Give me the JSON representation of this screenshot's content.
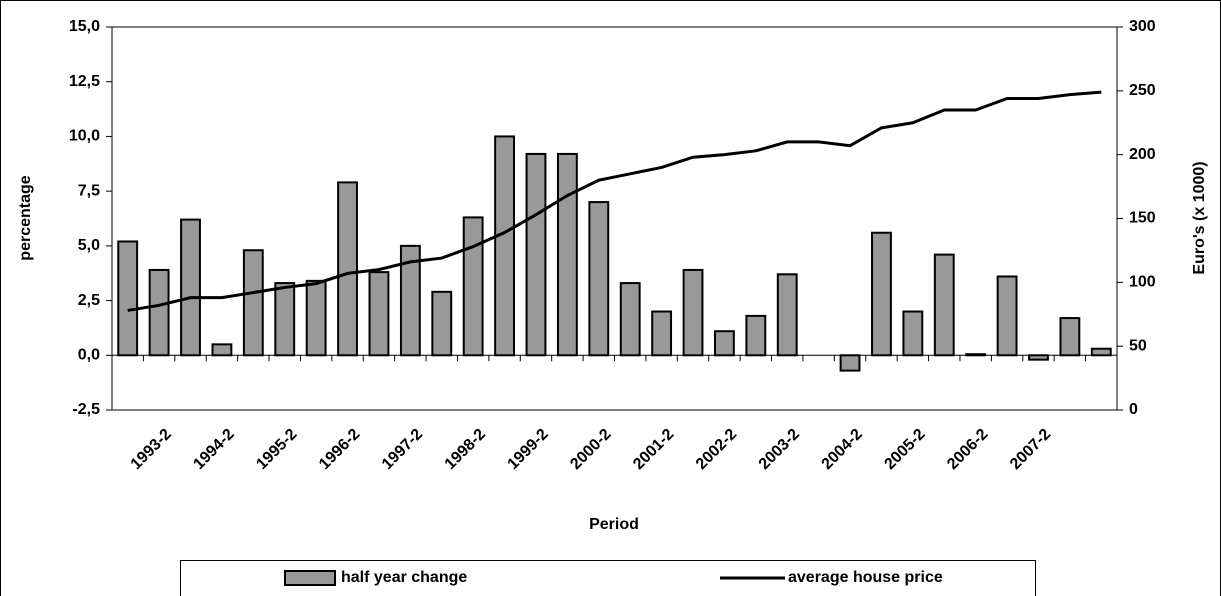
{
  "chart_data": {
    "type": "bar-line",
    "x_label": "Period",
    "y_label": "percentage",
    "y2_label": "Euro's (x 1000)",
    "categories": [
      null,
      "1993-2",
      null,
      "1994-2",
      null,
      "1995-2",
      null,
      "1996-2",
      null,
      "1997-2",
      null,
      "1998-2",
      null,
      "1999-2",
      null,
      "2000-2",
      null,
      "2001-2",
      null,
      "2002-2",
      null,
      "2003-2",
      null,
      "2004-2",
      null,
      "2005-2",
      null,
      "2006-2",
      null,
      "2007-2",
      null,
      null
    ],
    "series": [
      {
        "name": "half year change",
        "color": "#999999",
        "type": "bar",
        "values": [
          5.2,
          3.9,
          6.2,
          0.5,
          4.8,
          3.3,
          3.4,
          7.9,
          3.8,
          5.0,
          2.9,
          6.3,
          10.0,
          9.2,
          9.2,
          7.0,
          3.3,
          2.0,
          3.9,
          1.1,
          1.8,
          3.7,
          0,
          -0.7,
          5.6,
          2.0,
          4.6,
          0.05,
          3.6,
          -0.2,
          1.7,
          0.3
        ]
      },
      {
        "name": "average house price",
        "color": "#000000",
        "type": "line",
        "axis": "y2",
        "values": [
          78,
          82,
          88,
          88,
          92,
          96,
          99,
          107,
          110,
          116,
          119,
          128,
          139,
          153,
          168,
          180,
          185,
          190,
          198,
          200,
          203,
          210,
          210,
          207,
          221,
          225,
          235,
          235,
          244,
          244,
          247,
          249
        ]
      }
    ],
    "ylim": [
      -2.5,
      15
    ],
    "yticks": [
      {
        "value": -2.5,
        "label": "-2,5"
      },
      {
        "value": 0,
        "label": "0,0"
      },
      {
        "value": 2.5,
        "label": "2,5"
      },
      {
        "value": 5,
        "label": "5,0"
      },
      {
        "value": 7.5,
        "label": "7,5"
      },
      {
        "value": 10,
        "label": "10,0"
      },
      {
        "value": 12.5,
        "label": "12,5"
      },
      {
        "value": 15,
        "label": "15,0"
      }
    ],
    "y2lim": [
      0,
      300
    ],
    "y2ticks": [
      0,
      50,
      100,
      150,
      200,
      250,
      300
    ],
    "legend": "bottom"
  }
}
